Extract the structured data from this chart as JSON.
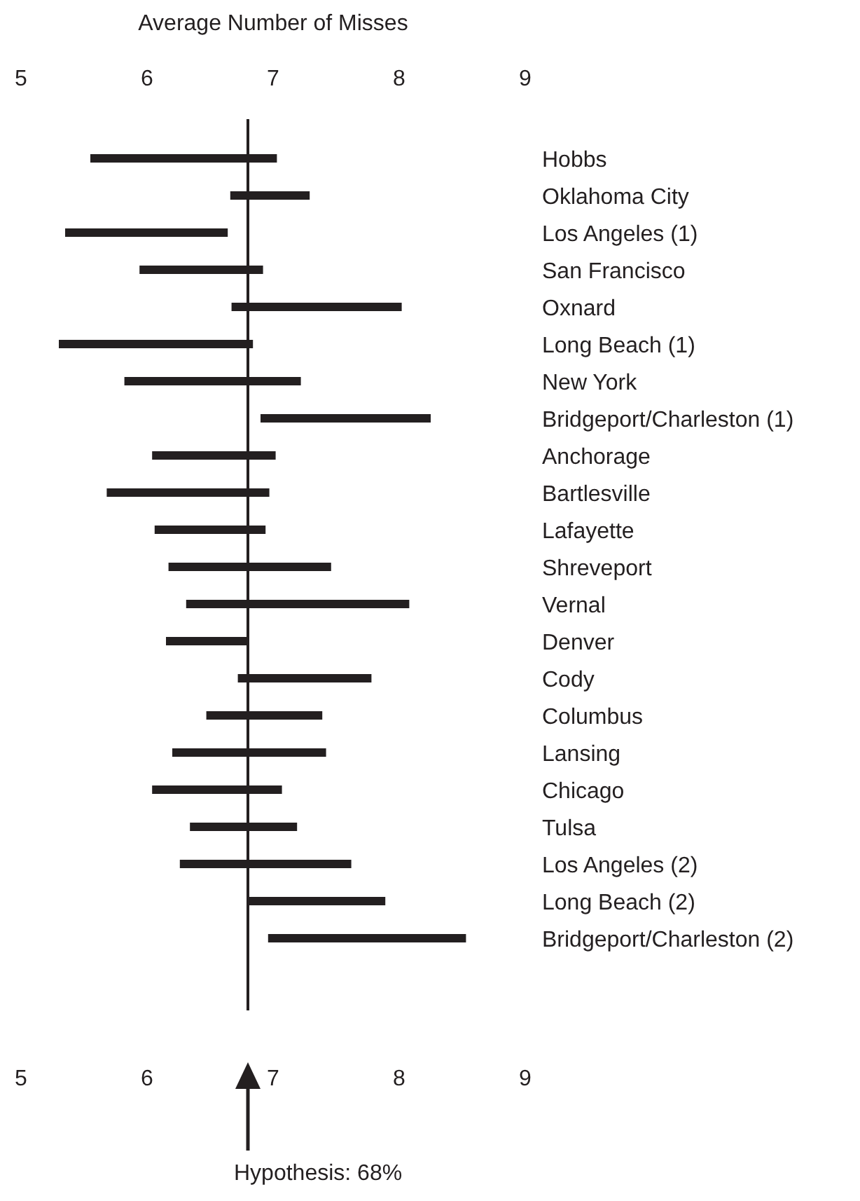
{
  "chart_data": {
    "type": "bar",
    "orientation": "horizontal",
    "x2label": "Average Number of Misses",
    "categories": [
      "Hobbs",
      "Oklahoma City",
      "Los Angeles (1)",
      "San Francisco",
      "Oxnard",
      "Long Beach (1)",
      "New York",
      "Bridgeport/Charleston (1)",
      "Anchorage",
      "Bartlesville",
      "Lafayette",
      "Shreveport",
      "Vernal",
      "Denver",
      "Cody",
      "Columbus",
      "Lansing",
      "Chicago",
      "Tulsa",
      "Los Angeles (2)",
      "Long Beach (2)",
      "Bridgeport/Charleston (2)"
    ],
    "base": [
      5.55,
      6.66,
      5.35,
      5.94,
      6.67,
      5.3,
      5.82,
      6.9,
      6.04,
      5.68,
      6.06,
      6.17,
      6.31,
      6.15,
      6.72,
      6.47,
      6.2,
      6.04,
      6.34,
      6.26,
      6.8,
      6.96
    ],
    "values": [
      1.48,
      0.63,
      1.29,
      0.98,
      1.35,
      1.54,
      1.4,
      1.35,
      0.98,
      1.29,
      0.88,
      1.29,
      1.77,
      0.65,
      1.06,
      0.92,
      1.22,
      1.03,
      0.85,
      1.36,
      1.09,
      1.57
    ],
    "color": "#231f20",
    "xlim": [
      5,
      9
    ],
    "xticks": [
      5,
      6,
      7,
      8,
      9
    ],
    "x2lim": [
      5,
      9
    ],
    "x2ticks": [
      5,
      6,
      7,
      8,
      9
    ],
    "ref_lines": [
      {
        "axis": "x",
        "value": 6.8,
        "color": "#231f20"
      }
    ],
    "annotations": [
      "Hypothesis: 68%"
    ]
  }
}
